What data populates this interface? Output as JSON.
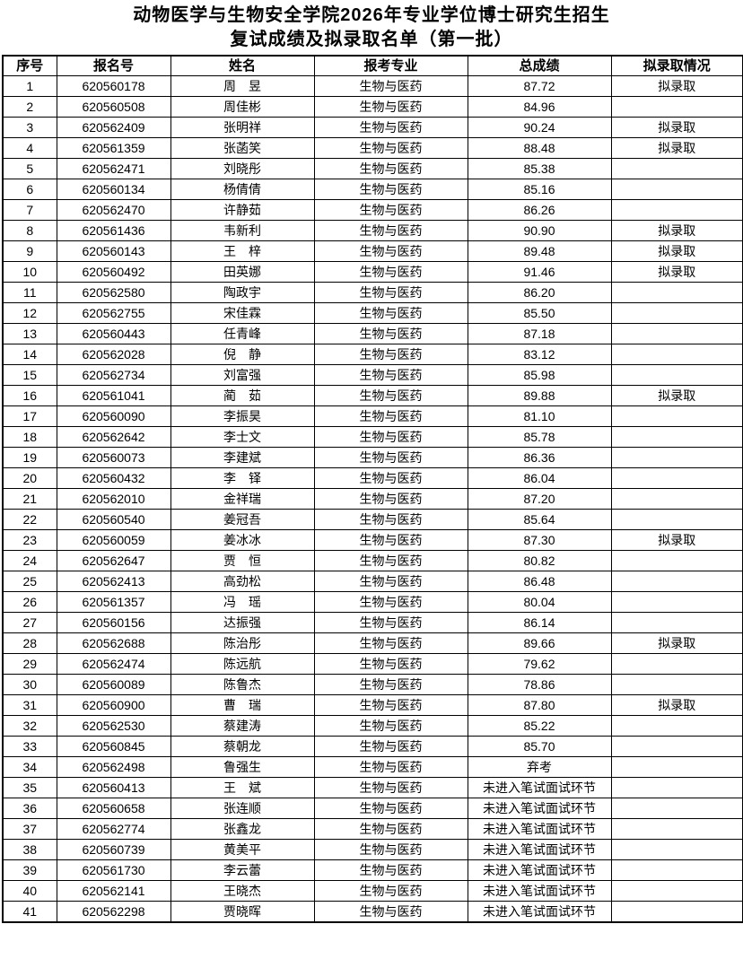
{
  "title": {
    "line1": "动物医学与生物安全学院2026年专业学位博士研究生招生",
    "line2": "复试成绩及拟录取名单（第一批）"
  },
  "table": {
    "headers": [
      "序号",
      "报名号",
      "姓名",
      "报考专业",
      "总成绩",
      "拟录取情况"
    ],
    "header_keys": [
      "index",
      "registration-number",
      "name",
      "major",
      "total-score",
      "admission-status"
    ],
    "rows": [
      [
        "1",
        "620560178",
        "周　昱",
        "生物与医药",
        "87.72",
        "拟录取"
      ],
      [
        "2",
        "620560508",
        "周佳彬",
        "生物与医药",
        "84.96",
        ""
      ],
      [
        "3",
        "620562409",
        "张明祥",
        "生物与医药",
        "90.24",
        "拟录取"
      ],
      [
        "4",
        "620561359",
        "张菡笑",
        "生物与医药",
        "88.48",
        "拟录取"
      ],
      [
        "5",
        "620562471",
        "刘晓彤",
        "生物与医药",
        "85.38",
        ""
      ],
      [
        "6",
        "620560134",
        "杨倩倩",
        "生物与医药",
        "85.16",
        ""
      ],
      [
        "7",
        "620562470",
        "许静茹",
        "生物与医药",
        "86.26",
        ""
      ],
      [
        "8",
        "620561436",
        "韦新利",
        "生物与医药",
        "90.90",
        "拟录取"
      ],
      [
        "9",
        "620560143",
        "王　梓",
        "生物与医药",
        "89.48",
        "拟录取"
      ],
      [
        "10",
        "620560492",
        "田英娜",
        "生物与医药",
        "91.46",
        "拟录取"
      ],
      [
        "11",
        "620562580",
        "陶政宇",
        "生物与医药",
        "86.20",
        ""
      ],
      [
        "12",
        "620562755",
        "宋佳霖",
        "生物与医药",
        "85.50",
        ""
      ],
      [
        "13",
        "620560443",
        "任青峰",
        "生物与医药",
        "87.18",
        ""
      ],
      [
        "14",
        "620562028",
        "倪　静",
        "生物与医药",
        "83.12",
        ""
      ],
      [
        "15",
        "620562734",
        "刘富强",
        "生物与医药",
        "85.98",
        ""
      ],
      [
        "16",
        "620561041",
        "蔺　茹",
        "生物与医药",
        "89.88",
        "拟录取"
      ],
      [
        "17",
        "620560090",
        "李振昊",
        "生物与医药",
        "81.10",
        ""
      ],
      [
        "18",
        "620562642",
        "李士文",
        "生物与医药",
        "85.78",
        ""
      ],
      [
        "19",
        "620560073",
        "李建斌",
        "生物与医药",
        "86.36",
        ""
      ],
      [
        "20",
        "620560432",
        "李　铎",
        "生物与医药",
        "86.04",
        ""
      ],
      [
        "21",
        "620562010",
        "金祥瑞",
        "生物与医药",
        "87.20",
        ""
      ],
      [
        "22",
        "620560540",
        "姜冠吾",
        "生物与医药",
        "85.64",
        ""
      ],
      [
        "23",
        "620560059",
        "姜冰冰",
        "生物与医药",
        "87.30",
        "拟录取"
      ],
      [
        "24",
        "620562647",
        "贾　恒",
        "生物与医药",
        "80.82",
        ""
      ],
      [
        "25",
        "620562413",
        "高劲松",
        "生物与医药",
        "86.48",
        ""
      ],
      [
        "26",
        "620561357",
        "冯　瑶",
        "生物与医药",
        "80.04",
        ""
      ],
      [
        "27",
        "620560156",
        "达振强",
        "生物与医药",
        "86.14",
        ""
      ],
      [
        "28",
        "620562688",
        "陈治彤",
        "生物与医药",
        "89.66",
        "拟录取"
      ],
      [
        "29",
        "620562474",
        "陈远航",
        "生物与医药",
        "79.62",
        ""
      ],
      [
        "30",
        "620560089",
        "陈鲁杰",
        "生物与医药",
        "78.86",
        ""
      ],
      [
        "31",
        "620560900",
        "曹　瑞",
        "生物与医药",
        "87.80",
        "拟录取"
      ],
      [
        "32",
        "620562530",
        "蔡建涛",
        "生物与医药",
        "85.22",
        ""
      ],
      [
        "33",
        "620560845",
        "蔡朝龙",
        "生物与医药",
        "85.70",
        ""
      ],
      [
        "34",
        "620562498",
        "鲁强生",
        "生物与医药",
        "弃考",
        ""
      ],
      [
        "35",
        "620560413",
        "王　斌",
        "生物与医药",
        "未进入笔试面试环节",
        ""
      ],
      [
        "36",
        "620560658",
        "张连顺",
        "生物与医药",
        "未进入笔试面试环节",
        ""
      ],
      [
        "37",
        "620562774",
        "张鑫龙",
        "生物与医药",
        "未进入笔试面试环节",
        ""
      ],
      [
        "38",
        "620560739",
        "黄美平",
        "生物与医药",
        "未进入笔试面试环节",
        ""
      ],
      [
        "39",
        "620561730",
        "李云蕾",
        "生物与医药",
        "未进入笔试面试环节",
        ""
      ],
      [
        "40",
        "620562141",
        "王晓杰",
        "生物与医药",
        "未进入笔试面试环节",
        ""
      ],
      [
        "41",
        "620562298",
        "贾晓晖",
        "生物与医药",
        "未进入笔试面试环节",
        ""
      ]
    ]
  },
  "colors": {
    "text": "#000000",
    "background": "#ffffff",
    "border": "#000000"
  }
}
